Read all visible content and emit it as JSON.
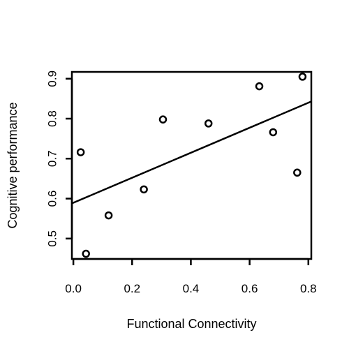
{
  "chart_data": {
    "type": "scatter",
    "xlabel": "Functional Connectivity",
    "ylabel": "Cognitive performance",
    "xlim": [
      -0.005,
      0.81
    ],
    "ylim": [
      0.449,
      0.917
    ],
    "x_ticks": [
      0.0,
      0.2,
      0.4,
      0.6,
      0.8
    ],
    "x_tick_labels": [
      "0.0",
      "0.2",
      "0.4",
      "0.6",
      "0.8"
    ],
    "y_ticks": [
      0.5,
      0.6,
      0.7,
      0.8,
      0.9
    ],
    "y_tick_labels": [
      "0.5",
      "0.6",
      "0.7",
      "0.8",
      "0.9"
    ],
    "grid": false,
    "series": [
      {
        "marker": "open-circle",
        "points": [
          {
            "x": 0.025,
            "y": 0.716
          },
          {
            "x": 0.043,
            "y": 0.462
          },
          {
            "x": 0.12,
            "y": 0.558
          },
          {
            "x": 0.24,
            "y": 0.623
          },
          {
            "x": 0.305,
            "y": 0.798
          },
          {
            "x": 0.46,
            "y": 0.788
          },
          {
            "x": 0.633,
            "y": 0.881
          },
          {
            "x": 0.68,
            "y": 0.766
          },
          {
            "x": 0.762,
            "y": 0.665
          },
          {
            "x": 0.78,
            "y": 0.905
          }
        ]
      }
    ],
    "fit_line": {
      "x": [
        -0.005,
        0.81
      ],
      "y": [
        0.588,
        0.843
      ]
    }
  }
}
